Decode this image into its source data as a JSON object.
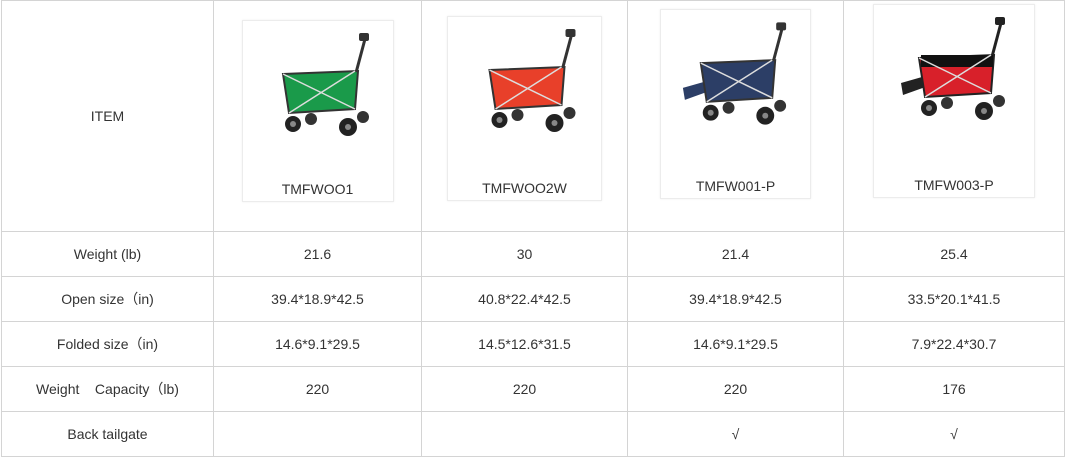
{
  "header_label": "ITEM",
  "products": [
    {
      "model": "TMFWOO1",
      "color": "#1a9a4a",
      "image": "green-folding-wagon"
    },
    {
      "model": "TMFWOO2W",
      "color": "#e8402a",
      "image": "red-folding-wagon"
    },
    {
      "model": "TMFW001-P",
      "color": "#2c3e66",
      "image": "navy-folding-wagon-with-tailgate"
    },
    {
      "model": "TMFW003-P",
      "color": "#d8202a",
      "image": "red-black-folding-wagon-with-tailgate"
    }
  ],
  "rows": [
    {
      "label": "Weight (lb)",
      "values": [
        "21.6",
        "30",
        "21.4",
        "25.4"
      ]
    },
    {
      "label": "Open size（in)",
      "values": [
        "39.4*18.9*42.5",
        "40.8*22.4*42.5",
        "39.4*18.9*42.5",
        "33.5*20.1*41.5"
      ]
    },
    {
      "label": "Folded size（in)",
      "values": [
        "14.6*9.1*29.5",
        "14.5*12.6*31.5",
        "14.6*9.1*29.5",
        "7.9*22.4*30.7"
      ]
    },
    {
      "label": "Weight    Capacity（lb)",
      "values": [
        "220",
        "220",
        "220",
        "176"
      ]
    },
    {
      "label": "Back tailgate",
      "values": [
        "",
        "",
        "√",
        "√"
      ]
    }
  ]
}
